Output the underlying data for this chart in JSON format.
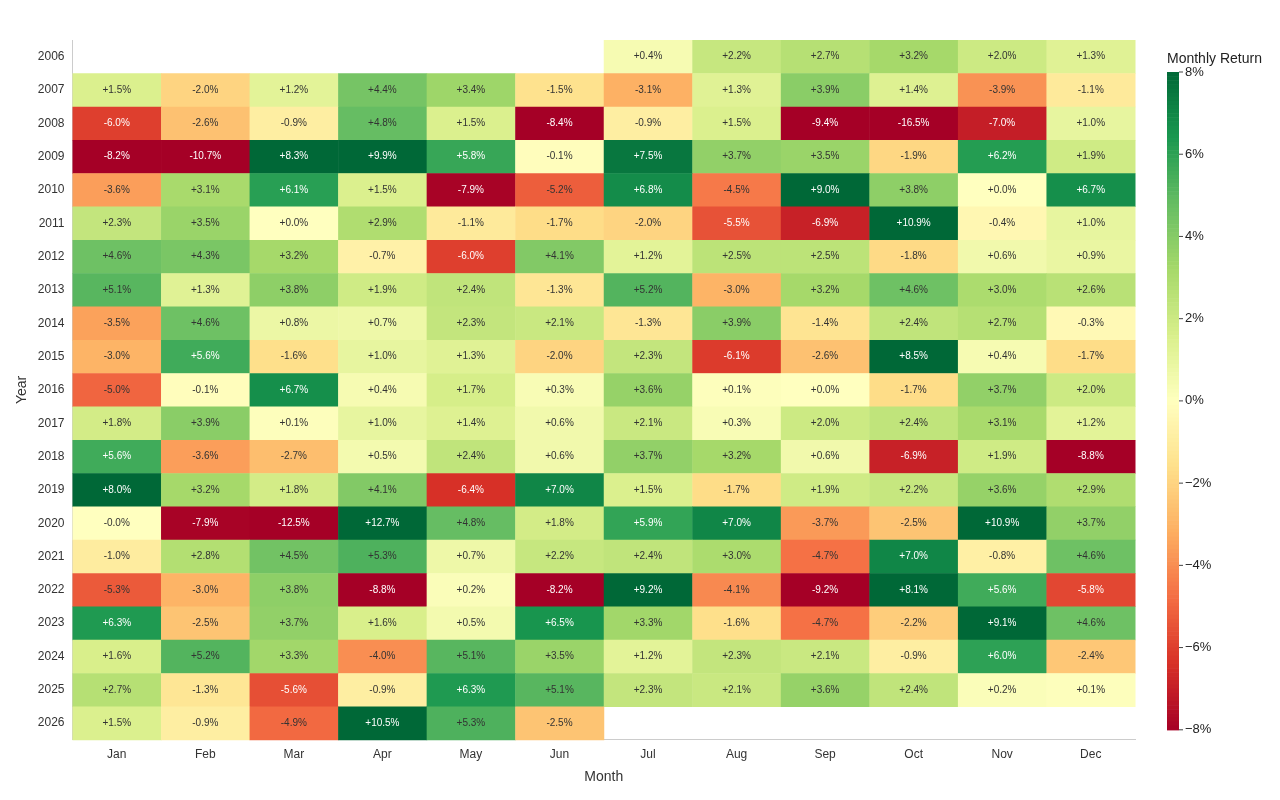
{
  "chart_data": {
    "type": "heatmap",
    "xlabel": "Month",
    "ylabel": "Year",
    "clabel": "Monthly Return",
    "categories": [
      "Jan",
      "Feb",
      "Mar",
      "Apr",
      "May",
      "Jun",
      "Jul",
      "Aug",
      "Sep",
      "Oct",
      "Nov",
      "Dec"
    ],
    "y_categories": [
      "2006",
      "2007",
      "2008",
      "2009",
      "2010",
      "2011",
      "2012",
      "2013",
      "2014",
      "2015",
      "2016",
      "2017",
      "2018",
      "2019",
      "2020",
      "2021",
      "2022",
      "2023",
      "2024",
      "2025",
      "2026"
    ],
    "cells": [
      [
        null,
        null,
        null,
        null,
        null,
        null,
        0.4,
        2.2,
        2.7,
        3.2,
        2.0,
        1.3
      ],
      [
        1.5,
        -2.0,
        1.2,
        4.4,
        3.4,
        -1.5,
        -3.1,
        1.3,
        3.9,
        1.4,
        -3.9,
        -1.1
      ],
      [
        -6.0,
        -2.6,
        -0.9,
        4.8,
        1.5,
        -8.4,
        -0.9,
        1.5,
        -9.4,
        -16.5,
        -7.0,
        1.0
      ],
      [
        -8.2,
        -10.7,
        8.3,
        9.9,
        5.8,
        -0.1,
        7.5,
        3.7,
        3.5,
        -1.9,
        6.2,
        1.9
      ],
      [
        -3.6,
        3.1,
        6.1,
        1.5,
        -7.9,
        -5.2,
        6.8,
        -4.5,
        9.0,
        3.8,
        0.0,
        6.7
      ],
      [
        2.3,
        3.5,
        0.0,
        2.9,
        -1.1,
        -1.7,
        -2.0,
        -5.5,
        -6.9,
        10.9,
        -0.4,
        1.0
      ],
      [
        4.6,
        4.3,
        3.2,
        -0.7,
        -6.0,
        4.1,
        1.2,
        2.5,
        2.5,
        -1.8,
        0.6,
        0.9
      ],
      [
        5.1,
        1.3,
        3.8,
        1.9,
        2.4,
        -1.3,
        5.2,
        -3.0,
        3.2,
        4.6,
        3.0,
        2.6
      ],
      [
        -3.5,
        4.6,
        0.8,
        0.7,
        2.3,
        2.1,
        -1.3,
        3.9,
        -1.4,
        2.4,
        2.7,
        -0.3
      ],
      [
        -3.0,
        5.6,
        -1.6,
        1.0,
        1.3,
        -2.0,
        2.3,
        -6.1,
        -2.6,
        8.5,
        0.4,
        -1.7
      ],
      [
        -5.0,
        -0.1,
        6.7,
        0.4,
        1.7,
        0.3,
        3.6,
        0.1,
        0.0,
        -1.7,
        3.7,
        2.0
      ],
      [
        1.8,
        3.9,
        0.1,
        1.0,
        1.4,
        0.6,
        2.1,
        0.3,
        2.0,
        2.4,
        3.1,
        1.2
      ],
      [
        5.6,
        -3.6,
        -2.7,
        0.5,
        2.4,
        0.6,
        3.7,
        3.2,
        0.6,
        -6.9,
        1.9,
        -8.8
      ],
      [
        8.0,
        3.2,
        1.8,
        4.1,
        -6.4,
        7.0,
        1.5,
        -1.7,
        1.9,
        2.2,
        3.6,
        2.9
      ],
      [
        -0.0,
        -7.9,
        -12.5,
        12.7,
        4.8,
        1.8,
        5.9,
        7.0,
        -3.7,
        -2.5,
        10.9,
        3.7
      ],
      [
        -1.0,
        2.8,
        4.5,
        5.3,
        0.7,
        2.2,
        2.4,
        3.0,
        -4.7,
        7.0,
        -0.8,
        4.6
      ],
      [
        -5.3,
        -3.0,
        3.8,
        -8.8,
        0.2,
        -8.2,
        9.2,
        -4.1,
        -9.2,
        8.1,
        5.6,
        -5.8
      ],
      [
        6.3,
        -2.5,
        3.7,
        1.6,
        0.5,
        6.5,
        3.3,
        -1.6,
        -4.7,
        -2.2,
        9.1,
        4.6
      ],
      [
        1.6,
        5.2,
        3.3,
        -4.0,
        5.1,
        3.5,
        1.2,
        2.3,
        2.1,
        -0.9,
        6.0,
        -2.4
      ],
      [
        2.7,
        -1.3,
        -5.6,
        -0.9,
        6.3,
        5.1,
        2.3,
        2.1,
        3.6,
        2.4,
        0.2,
        0.1
      ],
      [
        1.5,
        -0.9,
        -4.9,
        10.5,
        5.3,
        -2.5,
        null,
        null,
        null,
        null,
        null,
        null
      ]
    ],
    "cell_labels": [
      [
        null,
        null,
        null,
        null,
        null,
        null,
        "+0.4%",
        "+2.2%",
        "+2.7%",
        "+3.2%",
        "+2.0%",
        "+1.3%"
      ],
      [
        "+1.5%",
        "-2.0%",
        "+1.2%",
        "+4.4%",
        "+3.4%",
        "-1.5%",
        "-3.1%",
        "+1.3%",
        "+3.9%",
        "+1.4%",
        "-3.9%",
        "-1.1%"
      ],
      [
        "-6.0%",
        "-2.6%",
        "-0.9%",
        "+4.8%",
        "+1.5%",
        "-8.4%",
        "-0.9%",
        "+1.5%",
        "-9.4%",
        "-16.5%",
        "-7.0%",
        "+1.0%"
      ],
      [
        "-8.2%",
        "-10.7%",
        "+8.3%",
        "+9.9%",
        "+5.8%",
        "-0.1%",
        "+7.5%",
        "+3.7%",
        "+3.5%",
        "-1.9%",
        "+6.2%",
        "+1.9%"
      ],
      [
        "-3.6%",
        "+3.1%",
        "+6.1%",
        "+1.5%",
        "-7.9%",
        "-5.2%",
        "+6.8%",
        "-4.5%",
        "+9.0%",
        "+3.8%",
        "+0.0%",
        "+6.7%"
      ],
      [
        "+2.3%",
        "+3.5%",
        "+0.0%",
        "+2.9%",
        "-1.1%",
        "-1.7%",
        "-2.0%",
        "-5.5%",
        "-6.9%",
        "+10.9%",
        "-0.4%",
        "+1.0%"
      ],
      [
        "+4.6%",
        "+4.3%",
        "+3.2%",
        "-0.7%",
        "-6.0%",
        "+4.1%",
        "+1.2%",
        "+2.5%",
        "+2.5%",
        "-1.8%",
        "+0.6%",
        "+0.9%"
      ],
      [
        "+5.1%",
        "+1.3%",
        "+3.8%",
        "+1.9%",
        "+2.4%",
        "-1.3%",
        "+5.2%",
        "-3.0%",
        "+3.2%",
        "+4.6%",
        "+3.0%",
        "+2.6%"
      ],
      [
        "-3.5%",
        "+4.6%",
        "+0.8%",
        "+0.7%",
        "+2.3%",
        "+2.1%",
        "-1.3%",
        "+3.9%",
        "-1.4%",
        "+2.4%",
        "+2.7%",
        "-0.3%"
      ],
      [
        "-3.0%",
        "+5.6%",
        "-1.6%",
        "+1.0%",
        "+1.3%",
        "-2.0%",
        "+2.3%",
        "-6.1%",
        "-2.6%",
        "+8.5%",
        "+0.4%",
        "-1.7%"
      ],
      [
        "-5.0%",
        "-0.1%",
        "+6.7%",
        "+0.4%",
        "+1.7%",
        "+0.3%",
        "+3.6%",
        "+0.1%",
        "+0.0%",
        "-1.7%",
        "+3.7%",
        "+2.0%"
      ],
      [
        "+1.8%",
        "+3.9%",
        "+0.1%",
        "+1.0%",
        "+1.4%",
        "+0.6%",
        "+2.1%",
        "+0.3%",
        "+2.0%",
        "+2.4%",
        "+3.1%",
        "+1.2%"
      ],
      [
        "+5.6%",
        "-3.6%",
        "-2.7%",
        "+0.5%",
        "+2.4%",
        "+0.6%",
        "+3.7%",
        "+3.2%",
        "+0.6%",
        "-6.9%",
        "+1.9%",
        "-8.8%"
      ],
      [
        "+8.0%",
        "+3.2%",
        "+1.8%",
        "+4.1%",
        "-6.4%",
        "+7.0%",
        "+1.5%",
        "-1.7%",
        "+1.9%",
        "+2.2%",
        "+3.6%",
        "+2.9%"
      ],
      [
        "-0.0%",
        "-7.9%",
        "-12.5%",
        "+12.7%",
        "+4.8%",
        "+1.8%",
        "+5.9%",
        "+7.0%",
        "-3.7%",
        "-2.5%",
        "+10.9%",
        "+3.7%"
      ],
      [
        "-1.0%",
        "+2.8%",
        "+4.5%",
        "+5.3%",
        "+0.7%",
        "+2.2%",
        "+2.4%",
        "+3.0%",
        "-4.7%",
        "+7.0%",
        "-0.8%",
        "+4.6%"
      ],
      [
        "-5.3%",
        "-3.0%",
        "+3.8%",
        "-8.8%",
        "+0.2%",
        "-8.2%",
        "+9.2%",
        "-4.1%",
        "-9.2%",
        "+8.1%",
        "+5.6%",
        "-5.8%"
      ],
      [
        "+6.3%",
        "-2.5%",
        "+3.7%",
        "+1.6%",
        "+0.5%",
        "+6.5%",
        "+3.3%",
        "-1.6%",
        "-4.7%",
        "-2.2%",
        "+9.1%",
        "+4.6%"
      ],
      [
        "+1.6%",
        "+5.2%",
        "+3.3%",
        "-4.0%",
        "+5.1%",
        "+3.5%",
        "+1.2%",
        "+2.3%",
        "+2.1%",
        "-0.9%",
        "+6.0%",
        "-2.4%"
      ],
      [
        "+2.7%",
        "-1.3%",
        "-5.6%",
        "-0.9%",
        "+6.3%",
        "+5.1%",
        "+2.3%",
        "+2.1%",
        "+3.6%",
        "+2.4%",
        "+0.2%",
        "+0.1%"
      ],
      [
        "+1.5%",
        "-0.9%",
        "-4.9%",
        "+10.5%",
        "+5.3%",
        "-2.5%",
        null,
        null,
        null,
        null,
        null,
        null
      ]
    ],
    "clim": [
      -8,
      8
    ],
    "cticks": [
      {
        "value": 8,
        "label": "8%"
      },
      {
        "value": 6,
        "label": "6%"
      },
      {
        "value": 4,
        "label": "4%"
      },
      {
        "value": 2,
        "label": "2%"
      },
      {
        "value": 0,
        "label": "0%"
      },
      {
        "value": -2,
        "label": "−2%"
      },
      {
        "value": -4,
        "label": "−4%"
      },
      {
        "value": -6,
        "label": "−6%"
      },
      {
        "value": -8,
        "label": "−8%"
      }
    ]
  }
}
